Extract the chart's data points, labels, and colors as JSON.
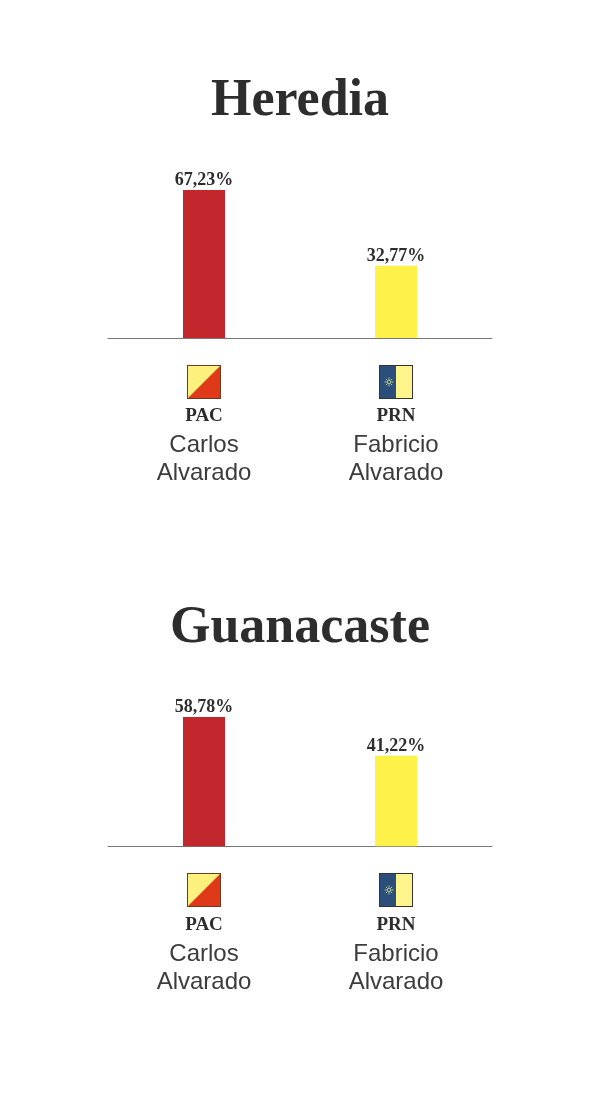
{
  "chart_data": [
    {
      "type": "bar",
      "title": "Heredia",
      "categories": [
        "PAC\nCarlos Alvarado",
        "PRN\nFabricio Alvarado"
      ],
      "values": [
        67.23,
        32.77
      ],
      "colors": [
        "#c1272d",
        "#fdf14a"
      ],
      "value_labels": [
        "67,23%",
        "32,77%"
      ]
    },
    {
      "type": "bar",
      "title": "Guanacaste",
      "categories": [
        "PAC\nCarlos Alvarado",
        "PRN\nFabricio Alvarado"
      ],
      "values": [
        58.78,
        41.22
      ],
      "colors": [
        "#c1272d",
        "#fdf14a"
      ],
      "value_labels": [
        "58,78%",
        "41,22%"
      ]
    }
  ]
}
